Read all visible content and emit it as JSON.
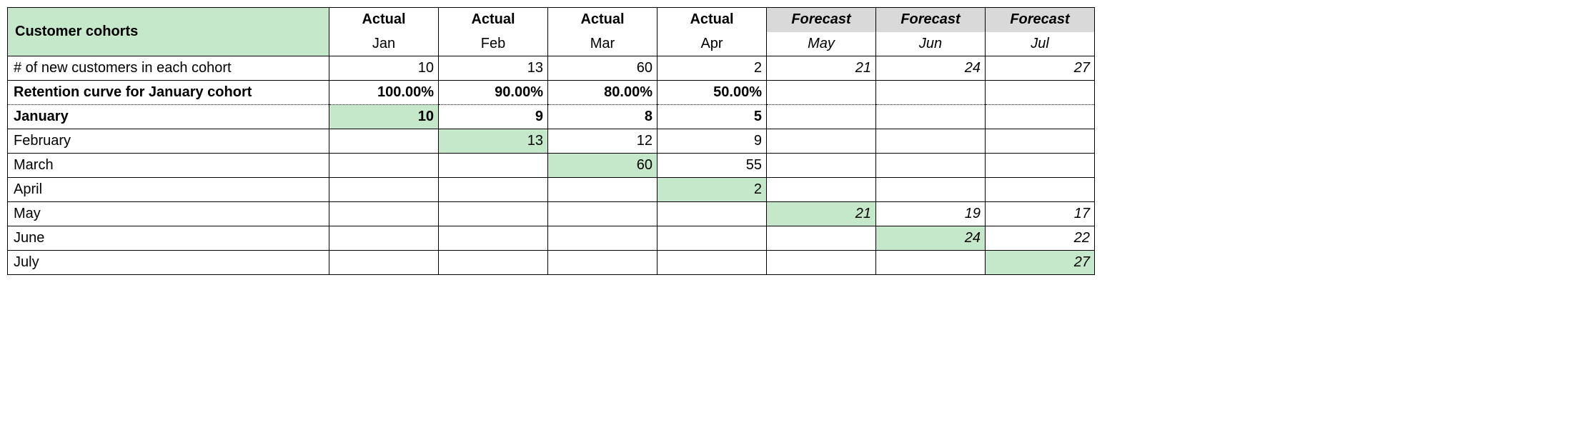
{
  "colors": {
    "title_bg": "#c5e8ca",
    "forecast_hdr_bg": "#d9d9d9",
    "diag_bg": "#c5e8ca",
    "border": "#000000",
    "bg": "#ffffff"
  },
  "title": "Customer cohorts",
  "columns": [
    {
      "type": "Actual",
      "month": "Jan",
      "forecast": false
    },
    {
      "type": "Actual",
      "month": "Feb",
      "forecast": false
    },
    {
      "type": "Actual",
      "month": "Mar",
      "forecast": false
    },
    {
      "type": "Actual",
      "month": "Apr",
      "forecast": false
    },
    {
      "type": "Forecast",
      "month": "May",
      "forecast": true
    },
    {
      "type": "Forecast",
      "month": "Jun",
      "forecast": true
    },
    {
      "type": "Forecast",
      "month": "Jul",
      "forecast": true
    }
  ],
  "rows": [
    {
      "label": "# of new customers in each cohort",
      "bold_label": false,
      "cells": [
        {
          "v": "10"
        },
        {
          "v": "13"
        },
        {
          "v": "60"
        },
        {
          "v": "2"
        },
        {
          "v": "21",
          "italic": true
        },
        {
          "v": "24",
          "italic": true
        },
        {
          "v": "27",
          "italic": true
        }
      ]
    },
    {
      "label": "Retention curve for January cohort",
      "bold_label": true,
      "dotted_below": true,
      "cells": [
        {
          "v": "100.00%",
          "bold": true
        },
        {
          "v": "90.00%",
          "bold": true
        },
        {
          "v": "80.00%",
          "bold": true
        },
        {
          "v": "50.00%",
          "bold": true
        },
        {
          "v": ""
        },
        {
          "v": ""
        },
        {
          "v": ""
        }
      ]
    },
    {
      "label": "January",
      "bold_label": true,
      "dotted_above": true,
      "cells": [
        {
          "v": "10",
          "bold": true,
          "hl": true
        },
        {
          "v": "9",
          "bold": true
        },
        {
          "v": "8",
          "bold": true
        },
        {
          "v": "5",
          "bold": true
        },
        {
          "v": ""
        },
        {
          "v": ""
        },
        {
          "v": ""
        }
      ]
    },
    {
      "label": "February",
      "cells": [
        {
          "v": ""
        },
        {
          "v": "13",
          "hl": true
        },
        {
          "v": "12"
        },
        {
          "v": "9"
        },
        {
          "v": ""
        },
        {
          "v": ""
        },
        {
          "v": ""
        }
      ]
    },
    {
      "label": "March",
      "cells": [
        {
          "v": ""
        },
        {
          "v": ""
        },
        {
          "v": "60",
          "hl": true
        },
        {
          "v": "55"
        },
        {
          "v": ""
        },
        {
          "v": ""
        },
        {
          "v": ""
        }
      ]
    },
    {
      "label": "April",
      "cells": [
        {
          "v": ""
        },
        {
          "v": ""
        },
        {
          "v": ""
        },
        {
          "v": "2",
          "hl": true
        },
        {
          "v": ""
        },
        {
          "v": ""
        },
        {
          "v": ""
        }
      ]
    },
    {
      "label": "May",
      "cells": [
        {
          "v": ""
        },
        {
          "v": ""
        },
        {
          "v": ""
        },
        {
          "v": ""
        },
        {
          "v": "21",
          "italic": true,
          "hl": true
        },
        {
          "v": "19",
          "italic": true
        },
        {
          "v": "17",
          "italic": true
        }
      ]
    },
    {
      "label": "June",
      "cells": [
        {
          "v": ""
        },
        {
          "v": ""
        },
        {
          "v": ""
        },
        {
          "v": ""
        },
        {
          "v": ""
        },
        {
          "v": "24",
          "italic": true,
          "hl": true
        },
        {
          "v": "22",
          "italic": true
        }
      ]
    },
    {
      "label": "July",
      "cells": [
        {
          "v": ""
        },
        {
          "v": ""
        },
        {
          "v": ""
        },
        {
          "v": ""
        },
        {
          "v": ""
        },
        {
          "v": ""
        },
        {
          "v": "27",
          "italic": true,
          "hl": true
        }
      ]
    }
  ]
}
